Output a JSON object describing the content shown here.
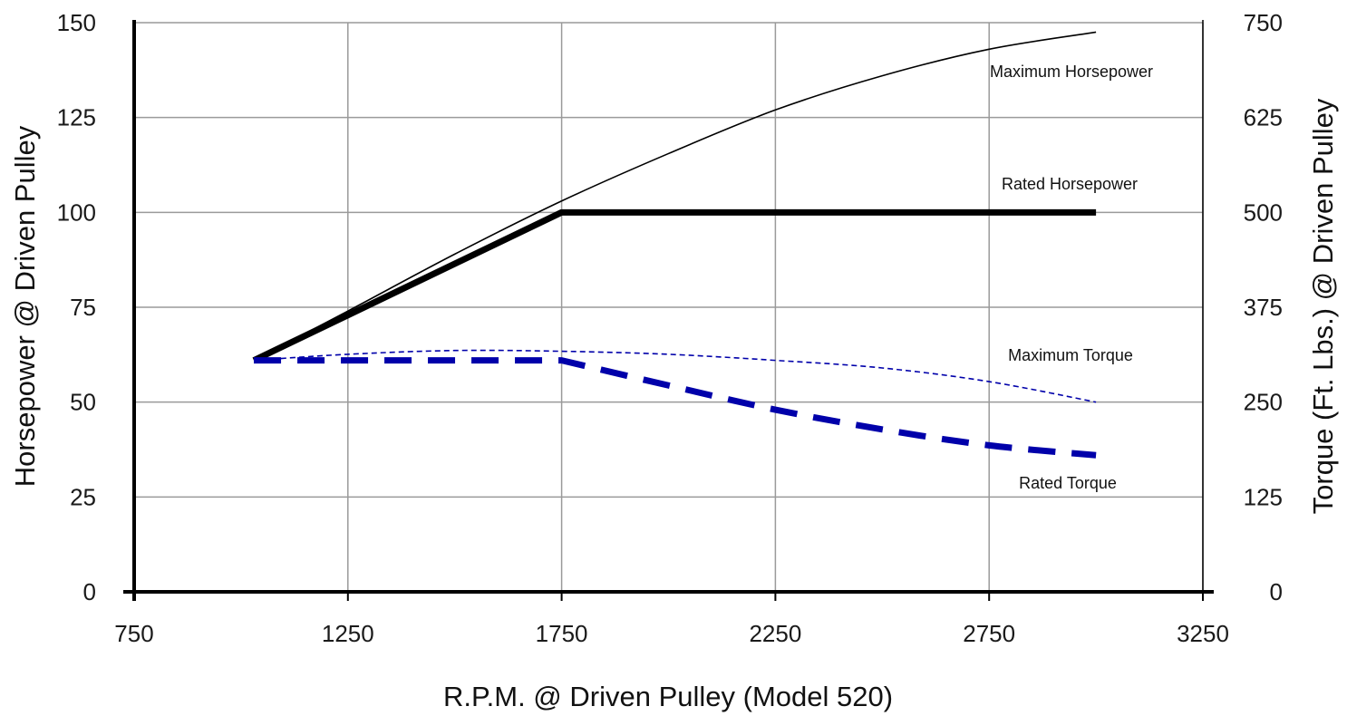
{
  "chart_data": {
    "type": "line",
    "xlabel": "R.P.M. @ Driven Pulley (Model 520)",
    "ylabel": "Horsepower @ Driven Pulley",
    "y2label": "Torque (Ft. Lbs.) @ Driven Pulley",
    "xlim": [
      750,
      3250
    ],
    "ylim": [
      0,
      150
    ],
    "y2lim": [
      0,
      750
    ],
    "x_ticks": [
      "750",
      "1250",
      "1750",
      "2250",
      "2750",
      "3250"
    ],
    "y_ticks": [
      "0",
      "25",
      "50",
      "75",
      "100",
      "125",
      "150"
    ],
    "y2_ticks": [
      "0",
      "125",
      "250",
      "375",
      "500",
      "625",
      "750"
    ],
    "grid": true,
    "series": [
      {
        "name": "Maximum Horsepower",
        "axis": "left",
        "style": "thin-solid",
        "color": "#000000",
        "points": [
          [
            1030,
            61
          ],
          [
            1250,
            74
          ],
          [
            1500,
            89
          ],
          [
            1750,
            103
          ],
          [
            2000,
            115.5
          ],
          [
            2250,
            127
          ],
          [
            2500,
            136
          ],
          [
            2750,
            143
          ],
          [
            3000,
            147.5
          ]
        ]
      },
      {
        "name": "Rated Horsepower",
        "axis": "left",
        "style": "thick-solid",
        "color": "#000000",
        "points": [
          [
            1030,
            61
          ],
          [
            1750,
            100
          ],
          [
            3000,
            100
          ]
        ]
      },
      {
        "name": "Maximum Torque",
        "axis": "right",
        "style": "thin-dashed",
        "color": "#0000aa",
        "points": [
          [
            1030,
            305
          ],
          [
            1250,
            313
          ],
          [
            1500,
            318
          ],
          [
            1750,
            317
          ],
          [
            2000,
            313
          ],
          [
            2250,
            305
          ],
          [
            2500,
            295
          ],
          [
            2750,
            277
          ],
          [
            3000,
            250
          ]
        ]
      },
      {
        "name": "Rated Torque",
        "axis": "right",
        "style": "thick-dashed",
        "color": "#0000aa",
        "points": [
          [
            1030,
            305
          ],
          [
            1750,
            305
          ],
          [
            2000,
            272
          ],
          [
            2250,
            240
          ],
          [
            2500,
            214
          ],
          [
            2750,
            193
          ],
          [
            3000,
            180
          ]
        ]
      }
    ],
    "annotations": {
      "max_hp": "Maximum Horsepower",
      "rated_hp": "Rated Horsepower",
      "max_torque": "Maximum Torque",
      "rated_torque": "Rated Torque"
    }
  }
}
